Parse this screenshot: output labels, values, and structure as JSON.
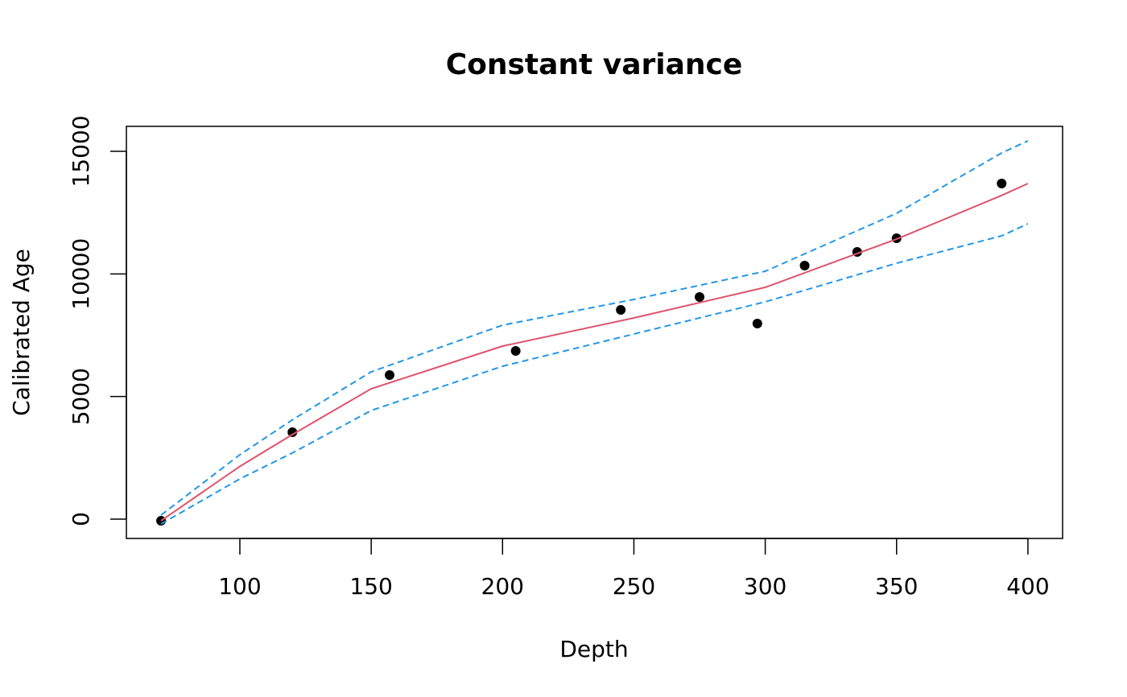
{
  "chart_data": {
    "type": "scatter",
    "title": "Constant variance",
    "x_label": "Depth",
    "y_label": "Calibrated Age",
    "xlim": [
      56.8,
      413.2
    ],
    "ylim": [
      -788,
      16017
    ],
    "xticks": [
      100,
      150,
      200,
      250,
      300,
      350,
      400
    ],
    "yticks": [
      0,
      5000,
      10000,
      15000
    ],
    "series": [
      {
        "kind": "points",
        "color": "#000000",
        "x": [
          70,
          120,
          157,
          205,
          245,
          275,
          297,
          315,
          335,
          350,
          390
        ],
        "values": [
          -66,
          3545,
          5875,
          6860,
          8533,
          9058,
          7975,
          10338,
          10896,
          11454,
          13686
        ]
      },
      {
        "kind": "line",
        "color": "#DF536B",
        "dashed": false,
        "x": [
          70,
          100,
          120,
          150,
          200,
          250,
          300,
          350,
          390,
          400
        ],
        "values": [
          -66,
          2150,
          3450,
          5317,
          7056,
          8205,
          9452,
          11420,
          13200,
          13686
        ]
      },
      {
        "kind": "line",
        "color": "#2297E6",
        "dashed": true,
        "x": [
          70,
          100,
          120,
          150,
          200,
          250,
          300,
          350,
          390,
          400
        ],
        "values": [
          164,
          2625,
          4050,
          6006,
          7910,
          8960,
          10108,
          12471,
          14933,
          15425
        ]
      },
      {
        "kind": "line",
        "color": "#2297E6",
        "dashed": true,
        "x": [
          70,
          100,
          120,
          150,
          200,
          250,
          300,
          350,
          390,
          400
        ],
        "values": [
          -197,
          1641,
          2700,
          4430,
          6236,
          7549,
          8861,
          10436,
          11552,
          12045
        ]
      }
    ]
  }
}
